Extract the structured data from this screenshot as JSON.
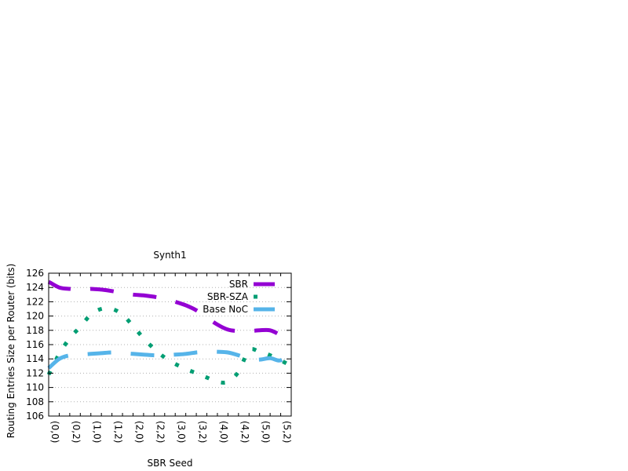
{
  "chart_data": {
    "type": "line",
    "title": "Synth1",
    "xlabel": "SBR Seed",
    "ylabel": "Routing Entries Size per Router (bits)",
    "ylim": [
      106,
      126
    ],
    "yticks": [
      106,
      108,
      110,
      112,
      114,
      116,
      118,
      120,
      122,
      124,
      126
    ],
    "categories": [
      "(0,0)",
      "(0,1)",
      "(0,2)",
      "(0,3)",
      "(1,0)",
      "(1,1)",
      "(1,2)",
      "(1,3)",
      "(2,0)",
      "(2,1)",
      "(2,2)",
      "(2,3)",
      "(3,0)",
      "(3,1)",
      "(3,2)",
      "(3,3)",
      "(4,0)",
      "(4,1)",
      "(4,2)",
      "(4,3)",
      "(5,0)",
      "(5,1)",
      "(5,2)",
      "(5,3)"
    ],
    "xtick_labels": [
      "(0,0)",
      "(0,2)",
      "(1,0)",
      "(1,2)",
      "(2,0)",
      "(2,2)",
      "(3,0)",
      "(3,2)",
      "(4,0)",
      "(4,2)",
      "(5,0)",
      "(5,2)"
    ],
    "grid": true,
    "legend_position": "top-right",
    "series": [
      {
        "name": "SBR",
        "color": "#9400d3",
        "style": "dashed",
        "values": [
          124.8,
          124.0,
          123.8,
          123.8,
          123.8,
          123.7,
          123.5,
          123.2,
          123.0,
          122.9,
          122.7,
          122.4,
          122.0,
          121.5,
          120.8,
          119.8,
          118.8,
          118.1,
          117.9,
          117.9,
          118.0,
          118.0,
          117.3,
          116.3
        ]
      },
      {
        "name": "SBR-SZA",
        "color": "#009e73",
        "style": "dotted",
        "values": [
          111.8,
          114.7,
          116.9,
          118.5,
          120.2,
          121.0,
          121.0,
          120.2,
          118.6,
          116.9,
          115.4,
          114.2,
          113.3,
          112.6,
          112.0,
          111.4,
          110.8,
          110.8,
          112.2,
          115.2,
          115.0,
          114.5,
          113.8,
          113.0
        ]
      },
      {
        "name": "Base NoC",
        "color": "#56b4e9",
        "style": "dashed",
        "values": [
          112.7,
          114.0,
          114.5,
          114.6,
          114.7,
          114.8,
          114.9,
          114.8,
          114.7,
          114.6,
          114.5,
          114.5,
          114.6,
          114.7,
          114.9,
          115.0,
          115.0,
          114.9,
          114.5,
          114.0,
          113.9,
          114.1,
          113.8,
          115.0
        ]
      }
    ]
  }
}
